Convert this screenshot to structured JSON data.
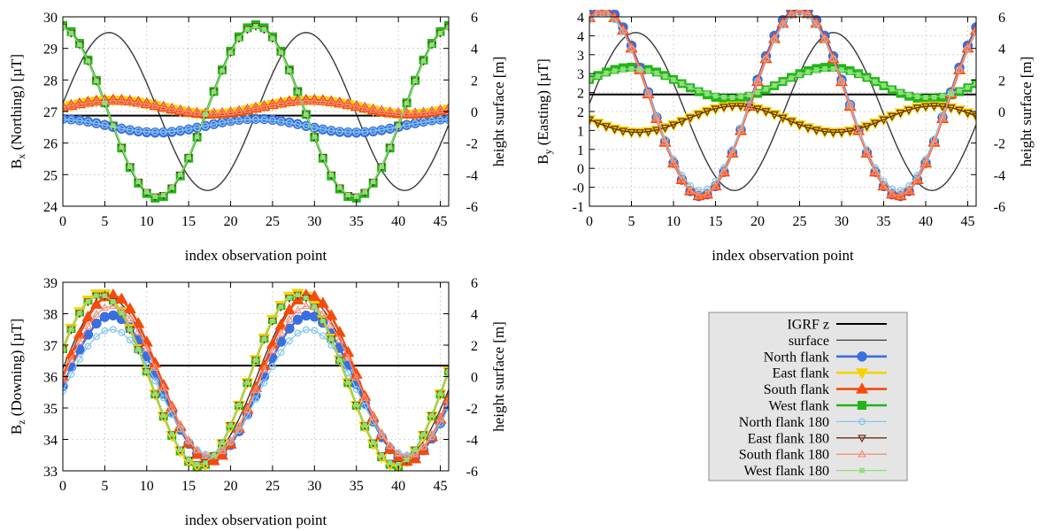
{
  "chart_data": [
    {
      "type": "line",
      "id": "bx",
      "ylabel": {
        "base": "B",
        "sub": "x",
        "rest": " (Northing) [µT]"
      },
      "xlabel": "index observation point",
      "y2label": "height surface [m]",
      "xlim": [
        0,
        46
      ],
      "ylim": [
        24,
        30
      ],
      "y2lim": [
        -6,
        6
      ],
      "xticks": [
        "0",
        "5",
        "10",
        "15",
        "20",
        "25",
        "30",
        "35",
        "40",
        "45"
      ],
      "xtick_values": [
        0,
        5,
        10,
        15,
        20,
        25,
        30,
        35,
        40,
        45
      ],
      "yticks": [
        "24",
        "25",
        "26",
        "27",
        "28",
        "29",
        "30"
      ],
      "ytick_values": [
        24,
        25,
        26,
        27,
        28,
        29,
        30
      ],
      "y2ticks": [
        "-6",
        "-4",
        "-2",
        "0",
        "2",
        "4",
        "6"
      ],
      "y2tick_values": [
        -6,
        -4,
        -2,
        0,
        2,
        4,
        6
      ],
      "igrf": 26.87,
      "surface": {
        "amplitude": 5,
        "period": 23.5,
        "phase_index": 5.5,
        "axis": "y2"
      },
      "series": {
        "North flank": {
          "mean": 26.55,
          "amp": 0.22,
          "phase_index": 23,
          "kind": "cos"
        },
        "East flank": {
          "mean": 27.14,
          "amp": 0.22,
          "phase_index": 6,
          "kind": "cos"
        },
        "South flank": {
          "mean": 27.14,
          "amp": 0.22,
          "phase_index": 6,
          "kind": "cos"
        },
        "West flank": {
          "mean": 27.0,
          "amp": 2.75,
          "phase_index": 23,
          "kind": "cos"
        },
        "North flank 180": {
          "mean": 26.55,
          "amp": 0.2,
          "phase_index": 23,
          "kind": "cos"
        },
        "East flank 180": {
          "mean": 27.0,
          "amp": 2.7,
          "phase_index": 23,
          "kind": "cos"
        },
        "South flank 180": {
          "mean": 27.14,
          "amp": 0.2,
          "phase_index": 6,
          "kind": "cos"
        },
        "West flank 180": {
          "mean": 27.0,
          "amp": 2.7,
          "phase_index": 23,
          "kind": "cos"
        }
      }
    },
    {
      "type": "line",
      "id": "by",
      "ylabel": {
        "base": "B",
        "sub": "y",
        "rest": " (Easting) [µT]"
      },
      "xlabel": "index observation point",
      "y2label": "height surface [m]",
      "xlim": [
        0,
        46
      ],
      "ylim": [
        -1,
        4
      ],
      "y2lim": [
        -6,
        6
      ],
      "xticks": [
        "0",
        "5",
        "10",
        "15",
        "20",
        "25",
        "30",
        "35",
        "40",
        "45"
      ],
      "xtick_values": [
        0,
        5,
        10,
        15,
        20,
        25,
        30,
        35,
        40,
        45
      ],
      "yticks": [
        "-1",
        "-0",
        "0",
        "1",
        "1",
        "2",
        "2",
        "3",
        "3",
        "4",
        "4"
      ],
      "ytick_values": [
        -1,
        -0.5,
        0,
        0.5,
        1,
        1.5,
        2,
        2.5,
        3,
        3.5,
        4
      ],
      "y2ticks": [
        "-6",
        "-4",
        "-2",
        "0",
        "2",
        "4",
        "6"
      ],
      "y2tick_values": [
        -6,
        -4,
        -2,
        0,
        2,
        4,
        6
      ],
      "igrf": 1.95,
      "surface": {
        "amplitude": 5,
        "period": 23.5,
        "phase_index": 5.5,
        "axis": "y2"
      },
      "series": {
        "North flank": {
          "mean": 1.76,
          "amp": 2.5,
          "phase_index": 1.5,
          "kind": "cos"
        },
        "East flank": {
          "mean": 1.3,
          "amp": 0.35,
          "phase_index": 17.5,
          "kind": "cos"
        },
        "South flank": {
          "mean": 1.72,
          "amp": 2.45,
          "phase_index": 1.5,
          "kind": "cos"
        },
        "West flank": {
          "mean": 2.25,
          "amp": 0.42,
          "phase_index": 5,
          "kind": "cos"
        },
        "North flank 180": {
          "mean": 1.76,
          "amp": 2.35,
          "phase_index": 1.5,
          "kind": "cos"
        },
        "East flank 180": {
          "mean": 1.3,
          "amp": 0.35,
          "phase_index": 17.5,
          "kind": "cos"
        },
        "South flank 180": {
          "mean": 1.72,
          "amp": 2.45,
          "phase_index": 1.5,
          "kind": "cos"
        },
        "West flank 180": {
          "mean": 2.25,
          "amp": 0.38,
          "phase_index": 5,
          "kind": "cos"
        }
      }
    },
    {
      "type": "line",
      "id": "bz",
      "ylabel": {
        "base": "B",
        "sub": "z",
        "rest": " (Downing) [µT]"
      },
      "xlabel": "index observation point",
      "y2label": "height surface [m]",
      "xlim": [
        0,
        46
      ],
      "ylim": [
        33,
        39
      ],
      "y2lim": [
        -6,
        6
      ],
      "xticks": [
        "0",
        "5",
        "10",
        "15",
        "20",
        "25",
        "30",
        "35",
        "40",
        "45"
      ],
      "xtick_values": [
        0,
        5,
        10,
        15,
        20,
        25,
        30,
        35,
        40,
        45
      ],
      "yticks": [
        "33",
        "34",
        "35",
        "36",
        "37",
        "38",
        "39"
      ],
      "ytick_values": [
        33,
        34,
        35,
        36,
        37,
        38,
        39
      ],
      "y2ticks": [
        "-6",
        "-4",
        "-2",
        "0",
        "2",
        "4",
        "6"
      ],
      "y2tick_values": [
        -6,
        -4,
        -2,
        0,
        2,
        4,
        6
      ],
      "igrf": 36.35,
      "surface": {
        "amplitude": 5,
        "period": 23.5,
        "phase_index": 5.5,
        "axis": "y2"
      },
      "series": {
        "North flank": {
          "mean": 35.65,
          "amp": 2.3,
          "phase_index": 5.8,
          "kind": "cos"
        },
        "East flank": {
          "mean": 35.9,
          "amp": 2.75,
          "phase_index": 4.5,
          "kind": "cos"
        },
        "South flank": {
          "mean": 35.95,
          "amp": 2.65,
          "phase_index": 5.8,
          "kind": "cos"
        },
        "West flank": {
          "mean": 35.9,
          "amp": 2.75,
          "phase_index": 4.5,
          "kind": "cos"
        },
        "North flank 180": {
          "mean": 35.5,
          "amp": 2.0,
          "phase_index": 5.8,
          "kind": "cos"
        },
        "East flank 180": {
          "mean": 35.9,
          "amp": 2.7,
          "phase_index": 4.5,
          "kind": "cos"
        },
        "South flank 180": {
          "mean": 35.85,
          "amp": 2.4,
          "phase_index": 5.8,
          "kind": "cos"
        },
        "West flank 180": {
          "mean": 35.9,
          "amp": 2.7,
          "phase_index": 4.5,
          "kind": "cos"
        }
      }
    }
  ],
  "legend": {
    "position": "bottom-right",
    "entries": [
      {
        "label": "IGRF z",
        "color": "#000000",
        "marker": "none",
        "line": "thick"
      },
      {
        "label": "surface",
        "color": "#3a3a3a",
        "marker": "none",
        "line": "thin"
      },
      {
        "label": "North flank",
        "color": "#3a6fe0",
        "marker": "circle"
      },
      {
        "label": "East flank",
        "color": "#f4d400",
        "marker": "triangle-down"
      },
      {
        "label": "South flank",
        "color": "#f44a0c",
        "marker": "triangle-up"
      },
      {
        "label": "West flank",
        "color": "#22b51a",
        "marker": "square"
      },
      {
        "label": "North flank 180",
        "color": "#87c7ea",
        "marker": "circle-open"
      },
      {
        "label": "East flank 180",
        "color": "#6b2e12",
        "marker": "triangle-down-open"
      },
      {
        "label": "South flank 180",
        "color": "#f3927c",
        "marker": "triangle-up-open"
      },
      {
        "label": "West flank 180",
        "color": "#8fe07a",
        "marker": "square-small"
      }
    ]
  }
}
